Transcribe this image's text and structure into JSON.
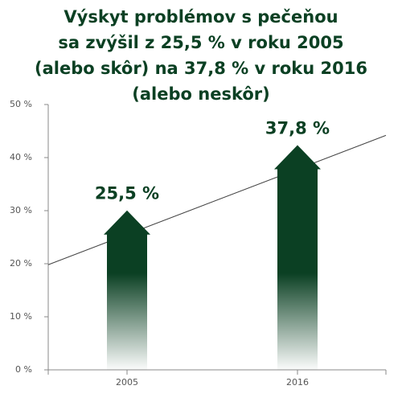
{
  "chart_data": {
    "type": "bar",
    "title": [
      "Výskyt problémov s pečeňou",
      "sa zvýšil z 25,5 % v roku 2005",
      "(alebo skôr) na 37,8 % v roku 2016",
      "(alebo neskôr)"
    ],
    "categories": [
      "2005",
      "2016"
    ],
    "values": [
      25.5,
      37.8
    ],
    "value_labels": [
      "25,5 %",
      "37,8 %"
    ],
    "color": "#0b4023",
    "ylim": [
      0,
      50
    ],
    "yticks": [
      {
        "value": 0,
        "label": "0 %"
      },
      {
        "value": 10,
        "label": "10 %"
      },
      {
        "value": 20,
        "label": "20 %"
      },
      {
        "value": 30,
        "label": "30 %"
      },
      {
        "value": 40,
        "label": "40 %"
      },
      {
        "value": 50,
        "label": "50 %"
      }
    ]
  }
}
